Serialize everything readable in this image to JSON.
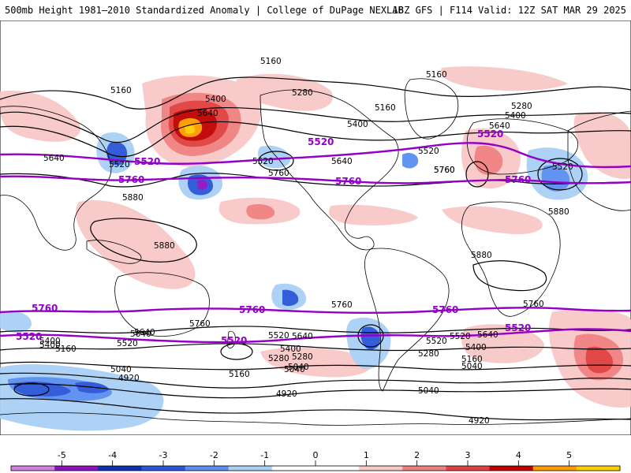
{
  "header": {
    "left_title": "500mb Height 1981–2010 Standardized Anomaly | College of DuPage NEXLAB",
    "right_title": "18Z GFS | F114 Valid: 12Z SAT MAR 29 2025"
  },
  "colors": {
    "anomaly_scale": [
      "#d080e0",
      "#9010c0",
      "#1030b0",
      "#2a55d8",
      "#5a8ef0",
      "#a9d0f5",
      "#ffffff",
      "#ffffff",
      "#f8c8c8",
      "#f08080",
      "#e04040",
      "#c00000",
      "#ff9900",
      "#ffcc00"
    ],
    "land_outline": "#000000",
    "height_contour": "#000000",
    "highlight_contour": "#9400c8"
  },
  "contour_labels": {
    "black": [
      {
        "text": "5160",
        "note": "north pacific"
      },
      {
        "text": "5160",
        "note": "siberia"
      },
      {
        "text": "5280",
        "note": "alaska"
      },
      {
        "text": "5400",
        "note": "alaska south"
      },
      {
        "text": "5640",
        "note": "east asia"
      },
      {
        "text": "5640",
        "note": "west pacific"
      },
      {
        "text": "5520",
        "note": "japan"
      },
      {
        "text": "5520",
        "note": "east pacific"
      },
      {
        "text": "5760",
        "note": "central pacific"
      },
      {
        "text": "5880",
        "note": "micronesia"
      },
      {
        "text": "5880",
        "note": "indonesia"
      },
      {
        "text": "5640",
        "note": "canada"
      },
      {
        "text": "5760",
        "note": "us south"
      },
      {
        "text": "5400",
        "note": "canada east"
      },
      {
        "text": "5160",
        "note": "greenland"
      },
      {
        "text": "5160",
        "note": "arctic"
      },
      {
        "text": "5520",
        "note": "newfoundland"
      },
      {
        "text": "5760",
        "note": "atlantic"
      },
      {
        "text": "5280",
        "note": "europe north"
      },
      {
        "text": "5400",
        "note": "europe"
      },
      {
        "text": "5640",
        "note": "mediterranean"
      },
      {
        "text": "5520",
        "note": "black sea"
      },
      {
        "text": "5880",
        "note": "arabia"
      },
      {
        "text": "5880",
        "note": "west africa"
      },
      {
        "text": "5760",
        "note": "south atlantic"
      },
      {
        "text": "5760",
        "note": "south indian"
      },
      {
        "text": "5640",
        "note": "south indian 2"
      },
      {
        "text": "5520",
        "note": "south indian 3"
      },
      {
        "text": "5400",
        "note": "south indian 4"
      },
      {
        "text": "5160",
        "note": "south indian 5"
      },
      {
        "text": "5040",
        "note": "south indian 6"
      },
      {
        "text": "5760",
        "note": "australia"
      },
      {
        "text": "5640",
        "note": "tasman"
      },
      {
        "text": "5520",
        "note": "south pacific west"
      },
      {
        "text": "5400",
        "note": "south pacific"
      },
      {
        "text": "5280",
        "note": "south pacific 2"
      },
      {
        "text": "5160",
        "note": "south pacific 3"
      },
      {
        "text": "5040",
        "note": "south pacific 4"
      },
      {
        "text": "5520",
        "note": "south pacific 5"
      },
      {
        "text": "5640",
        "note": "south pacific 6"
      },
      {
        "text": "5280",
        "note": "drake"
      },
      {
        "text": "5040",
        "note": "drake 2"
      },
      {
        "text": "5400",
        "note": "south atlantic 2"
      },
      {
        "text": "5160",
        "note": "south atlantic 3"
      },
      {
        "text": "5040",
        "note": "south atlantic 4"
      },
      {
        "text": "4920",
        "note": "antarctic west"
      },
      {
        "text": "4920",
        "note": "antarctic central"
      },
      {
        "text": "4920",
        "note": "antarctic east"
      },
      {
        "text": "5520",
        "note": "south atlantic 5"
      },
      {
        "text": "5400",
        "note": "south atlantic 6"
      },
      {
        "text": "5280",
        "note": "south atlantic 7"
      },
      {
        "text": "5640",
        "note": "south atlantic 8"
      },
      {
        "text": "5040",
        "note": "south atlantic 9"
      }
    ],
    "purple": [
      {
        "text": "5520",
        "note": "nh west"
      },
      {
        "text": "5760",
        "note": "nh west"
      },
      {
        "text": "5520",
        "note": "nh central"
      },
      {
        "text": "5760",
        "note": "nh central"
      },
      {
        "text": "5520",
        "note": "nh east"
      },
      {
        "text": "5760",
        "note": "nh east"
      },
      {
        "text": "5760",
        "note": "sh west"
      },
      {
        "text": "5520",
        "note": "sh west"
      },
      {
        "text": "5760",
        "note": "sh central"
      },
      {
        "text": "5520",
        "note": "sh central"
      },
      {
        "text": "5760",
        "note": "sh east"
      },
      {
        "text": "5520",
        "note": "sh east"
      }
    ]
  },
  "colorbar": {
    "ticks": [
      "-5",
      "-4",
      "-3",
      "-2",
      "-1",
      "0",
      "1",
      "2",
      "3",
      "4",
      "5"
    ]
  }
}
